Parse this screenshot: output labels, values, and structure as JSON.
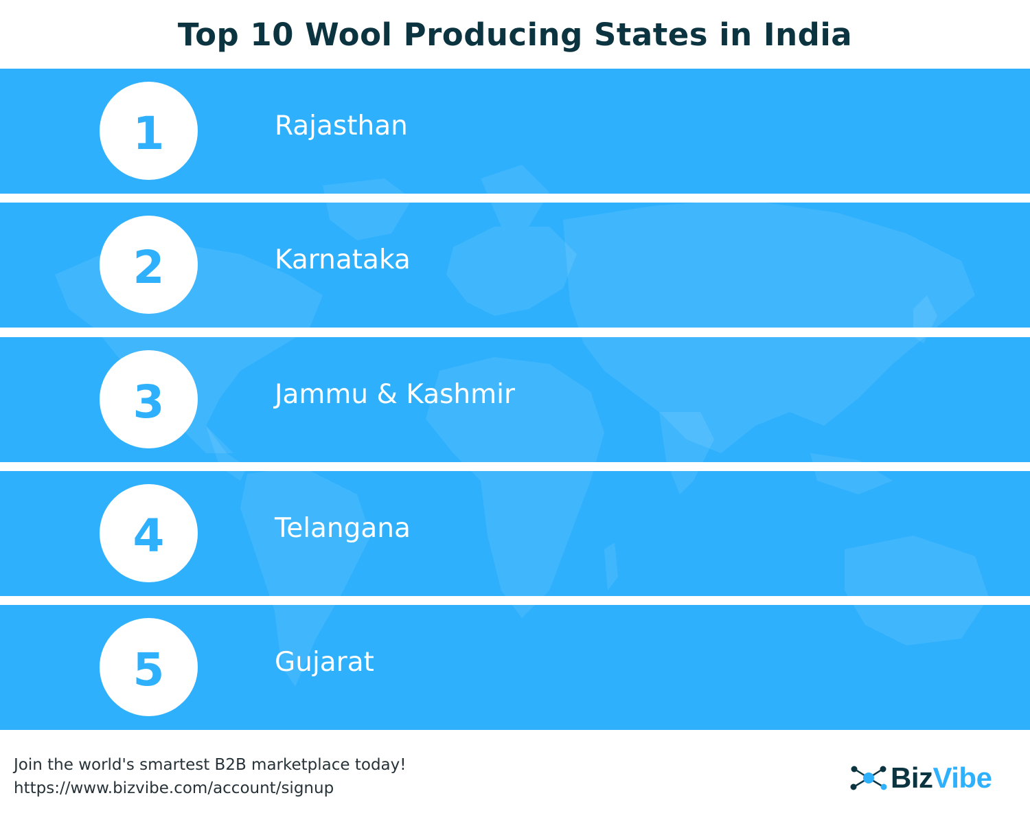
{
  "title": "Top 10 Wool Producing States in India",
  "colors": {
    "band": "#2eb0fd",
    "title": "#0c3440",
    "map_overlay": "#ffffff",
    "logo_dark": "#0c3440",
    "logo_accent": "#2eb0fd"
  },
  "rankings": [
    {
      "rank": "1",
      "state": "Rajasthan"
    },
    {
      "rank": "2",
      "state": "Karnataka"
    },
    {
      "rank": "3",
      "state": "Jammu & Kashmir"
    },
    {
      "rank": "4",
      "state": "Telangana"
    },
    {
      "rank": "5",
      "state": "Gujarat"
    }
  ],
  "footer": {
    "line1": "Join the world's smartest B2B marketplace today!",
    "line2": "https://www.bizvibe.com/account/signup"
  },
  "logo": {
    "icon": "network-nodes-icon",
    "part1": "Biz",
    "part2": "Vibe"
  }
}
